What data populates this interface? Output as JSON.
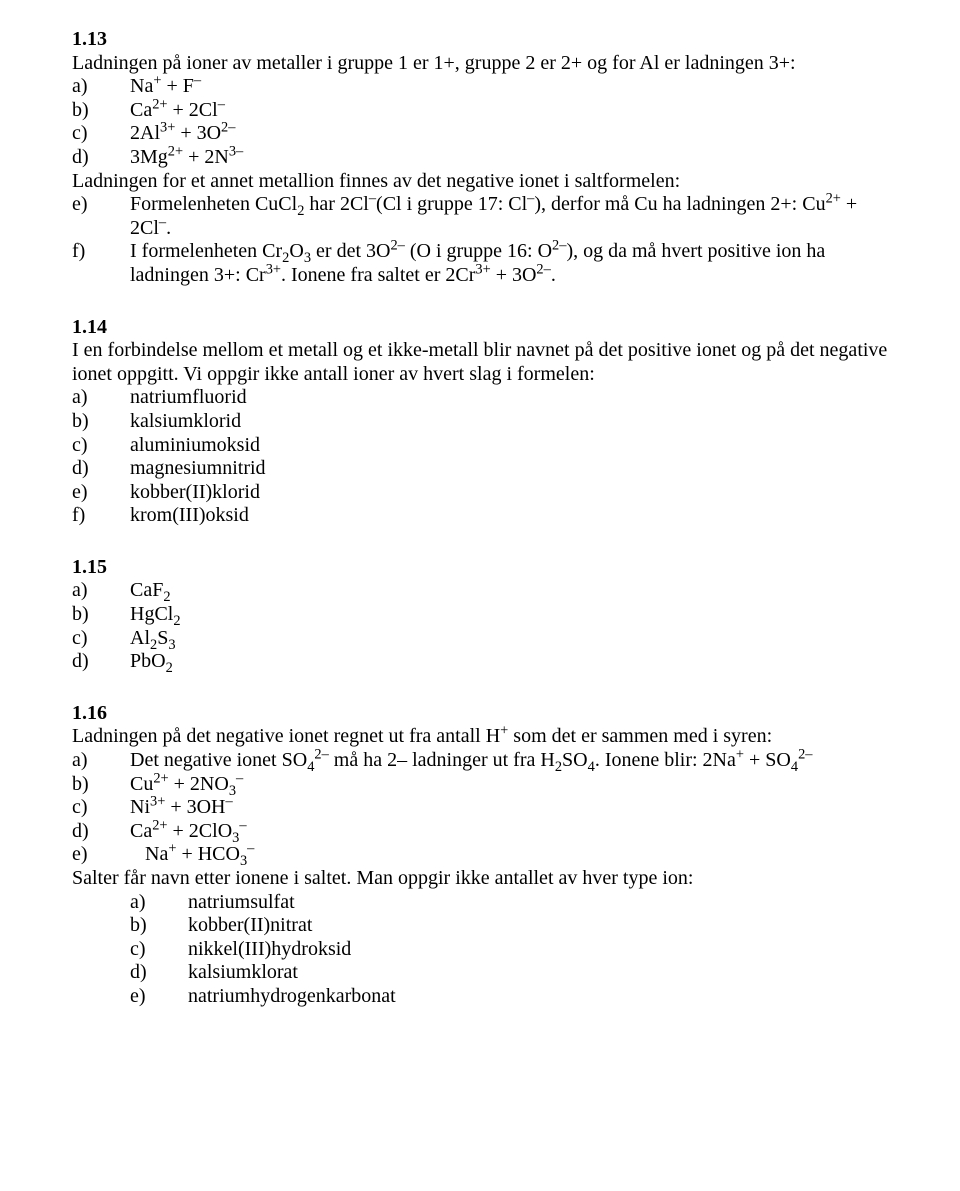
{
  "s113": {
    "num": "1.13",
    "intro": "Ladningen på ioner av metaller i gruppe 1 er 1+, gruppe 2 er 2+ og for Al er ladningen 3+:",
    "a_label": "a)",
    "a_html": "Na<sup>+</sup> + F<sup>–</sup>",
    "b_label": "b)",
    "b_html": "Ca<sup>2+</sup> + 2Cl<sup>–</sup>",
    "c_label": "c)",
    "c_html": "2Al<sup>3+</sup> + 3O<sup>2–</sup>",
    "d_label": "d)",
    "d_html": "3Mg<sup>2+</sup> + 2N<sup>3–</sup>",
    "mid": "Ladningen for et annet metallion finnes av det negative ionet i saltformelen:",
    "e_label": "e)",
    "e_html": "Formelenheten CuCl<sub>2</sub> har 2Cl<sup>–</sup>(Cl i gruppe 17: Cl<sup>–</sup>), derfor må Cu ha ladningen 2+: Cu<sup>2+</sup> + 2Cl<sup>–</sup>.",
    "f_label": "f)",
    "f_html": "I formelenheten Cr<sub>2</sub>O<sub>3</sub> er det 3O<sup>2–</sup> (O i gruppe 16: O<sup>2–</sup>), og da må hvert positive ion ha ladningen 3+: Cr<sup>3+</sup>. Ionene fra saltet er 2Cr<sup>3+</sup> + 3O<sup>2–</sup>."
  },
  "s114": {
    "num": "1.14",
    "intro": "I en forbindelse mellom et metall og et ikke-metall blir navnet på det positive ionet og på det negative ionet oppgitt. Vi oppgir ikke antall ioner av hvert slag i formelen:",
    "a_label": "a)",
    "a": "natriumfluorid",
    "b_label": "b)",
    "b": "kalsiumklorid",
    "c_label": "c)",
    "c": "aluminiumoksid",
    "d_label": "d)",
    "d": "magnesiumnitrid",
    "e_label": "e)",
    "e": "kobber(II)klorid",
    "f_label": "f)",
    "f": "krom(III)oksid"
  },
  "s115": {
    "num": "1.15",
    "a_label": "a)",
    "a_html": "CaF<sub>2</sub>",
    "b_label": "b)",
    "b_html": "HgCl<sub>2</sub>",
    "c_label": "c)",
    "c_html": "Al<sub>2</sub>S<sub>3</sub>",
    "d_label": "d)",
    "d_html": "PbO<sub>2</sub>"
  },
  "s116": {
    "num": "1.16",
    "intro_html": "Ladningen på det negative ionet regnet ut fra antall H<sup>+</sup> som det er sammen med i syren:",
    "a_label": "a)",
    "a_html": "Det negative ionet SO<sub>4</sub><sup>2–</sup> må ha 2– ladninger ut fra H<sub>2</sub>SO<sub>4</sub>. Ionene blir: 2Na<sup>+</sup> + SO<sub>4</sub><sup>2–</sup>",
    "b_label": "b)",
    "b_html": "Cu<sup>2+</sup> + 2NO<sub>3</sub><sup>–</sup>",
    "c_label": "c)",
    "c_html": "Ni<sup>3+</sup> + 3OH<sup>–</sup>",
    "d_label": "d)",
    "d_html": "Ca<sup>2+</sup> + 2ClO<sub>3</sub><sup>–</sup>",
    "e_label": "e)",
    "e_html": "   Na<sup>+</sup> + HCO<sub>3</sub><sup>–</sup>",
    "mid": "Salter får navn etter ionene i saltet. Man oppgir ikke antallet av hver type ion:",
    "na_label": "a)",
    "na": "natriumsulfat",
    "nb_label": "b)",
    "nb": "kobber(II)nitrat",
    "nc_label": "c)",
    "nc": "nikkel(III)hydroksid",
    "nd_label": "d)",
    "nd": "kalsiumklorat",
    "ne_label": "e)",
    "ne": "natriumhydrogenkarbonat"
  }
}
